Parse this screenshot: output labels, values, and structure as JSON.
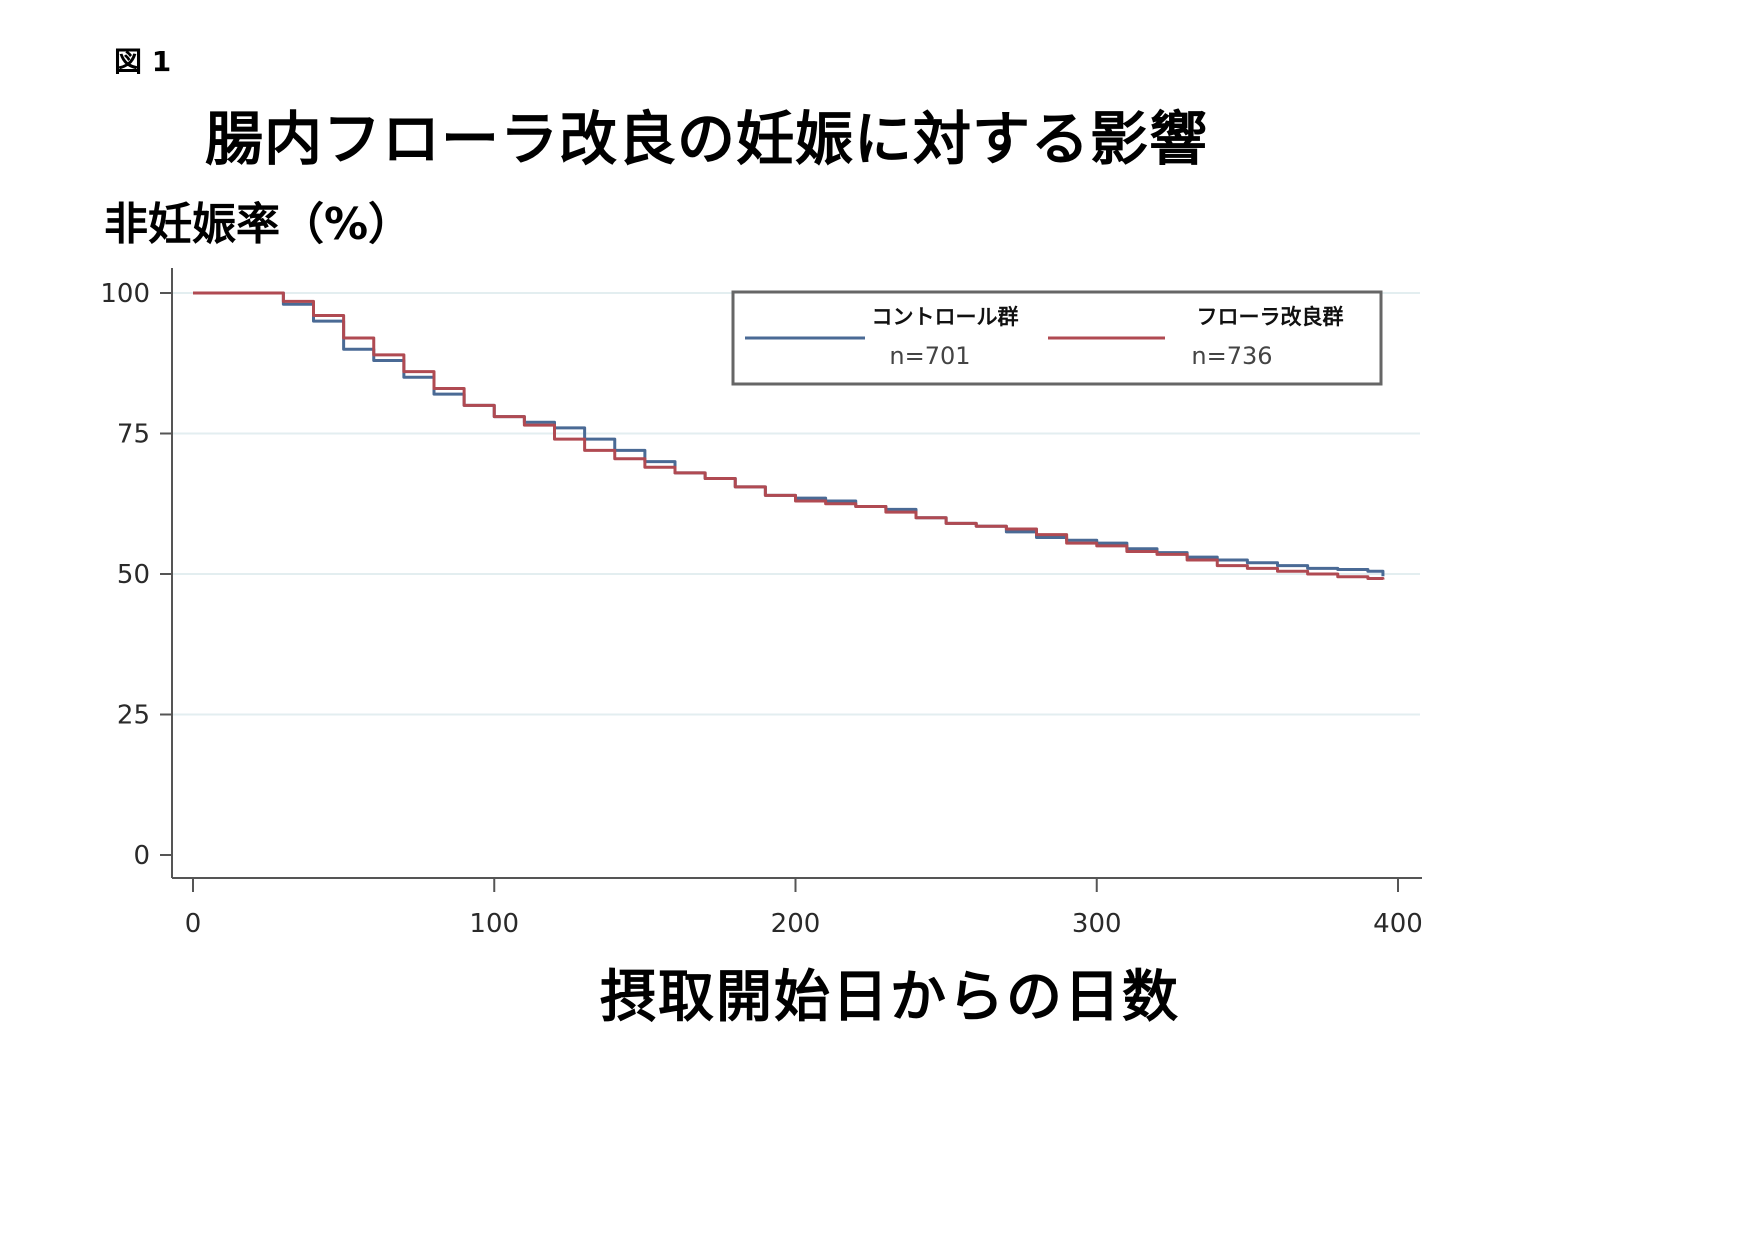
{
  "figure_label": "図 1",
  "title": "腸内フローラ改良の妊娠に対する影響",
  "ylabel": "非妊娠率（%）",
  "xlabel": "摂取開始日からの日数",
  "chart_data": {
    "type": "line",
    "title": "腸内フローラ改良の妊娠に対する影響",
    "xlabel": "摂取開始日からの日数",
    "ylabel": "非妊娠率（%）",
    "xlim": [
      0,
      400
    ],
    "ylim": [
      0,
      100
    ],
    "x_ticks": [
      0,
      100,
      200,
      300,
      400
    ],
    "y_ticks": [
      0,
      25,
      50,
      75,
      100
    ],
    "x_tick_labels": [
      "0",
      "100",
      "200",
      "300",
      "400"
    ],
    "y_tick_labels": [
      "0",
      "25",
      "50",
      "75",
      "100"
    ],
    "grid": "horizontal",
    "legend_position": "top-right",
    "series": [
      {
        "name": "コントロール群",
        "n_label": "n=701",
        "color": "#4a6a95",
        "points": [
          [
            0,
            100
          ],
          [
            22,
            100
          ],
          [
            30,
            98
          ],
          [
            40,
            95
          ],
          [
            50,
            90
          ],
          [
            60,
            88
          ],
          [
            70,
            85
          ],
          [
            80,
            82
          ],
          [
            90,
            80
          ],
          [
            100,
            78
          ],
          [
            110,
            77
          ],
          [
            120,
            76
          ],
          [
            130,
            74
          ],
          [
            140,
            72
          ],
          [
            150,
            70
          ],
          [
            160,
            68
          ],
          [
            170,
            67
          ],
          [
            180,
            65.5
          ],
          [
            190,
            64
          ],
          [
            200,
            63.5
          ],
          [
            210,
            63
          ],
          [
            220,
            62
          ],
          [
            230,
            61.5
          ],
          [
            240,
            60
          ],
          [
            250,
            59
          ],
          [
            260,
            58.5
          ],
          [
            270,
            57.5
          ],
          [
            280,
            56.5
          ],
          [
            290,
            56
          ],
          [
            300,
            55.5
          ],
          [
            310,
            54.5
          ],
          [
            320,
            53.8
          ],
          [
            330,
            53
          ],
          [
            340,
            52.5
          ],
          [
            350,
            52
          ],
          [
            360,
            51.5
          ],
          [
            370,
            51
          ],
          [
            380,
            50.8
          ],
          [
            390,
            50.5
          ],
          [
            395,
            49.6
          ]
        ]
      },
      {
        "name": "フローラ改良群",
        "n_label": "n=736",
        "color": "#b04a52",
        "points": [
          [
            0,
            100
          ],
          [
            20,
            100
          ],
          [
            30,
            98.5
          ],
          [
            40,
            96
          ],
          [
            50,
            92
          ],
          [
            60,
            89
          ],
          [
            70,
            86
          ],
          [
            80,
            83
          ],
          [
            90,
            80
          ],
          [
            100,
            78
          ],
          [
            110,
            76.5
          ],
          [
            120,
            74
          ],
          [
            130,
            72
          ],
          [
            140,
            70.5
          ],
          [
            150,
            69
          ],
          [
            160,
            68
          ],
          [
            170,
            67
          ],
          [
            180,
            65.5
          ],
          [
            190,
            64
          ],
          [
            200,
            63
          ],
          [
            210,
            62.5
          ],
          [
            220,
            62
          ],
          [
            230,
            61
          ],
          [
            240,
            60
          ],
          [
            250,
            59
          ],
          [
            260,
            58.5
          ],
          [
            270,
            58
          ],
          [
            280,
            57
          ],
          [
            290,
            55.5
          ],
          [
            300,
            55
          ],
          [
            310,
            54
          ],
          [
            320,
            53.5
          ],
          [
            330,
            52.5
          ],
          [
            340,
            51.5
          ],
          [
            350,
            51
          ],
          [
            360,
            50.5
          ],
          [
            370,
            50
          ],
          [
            380,
            49.5
          ],
          [
            390,
            49.2
          ],
          [
            395,
            49
          ]
        ]
      }
    ]
  }
}
